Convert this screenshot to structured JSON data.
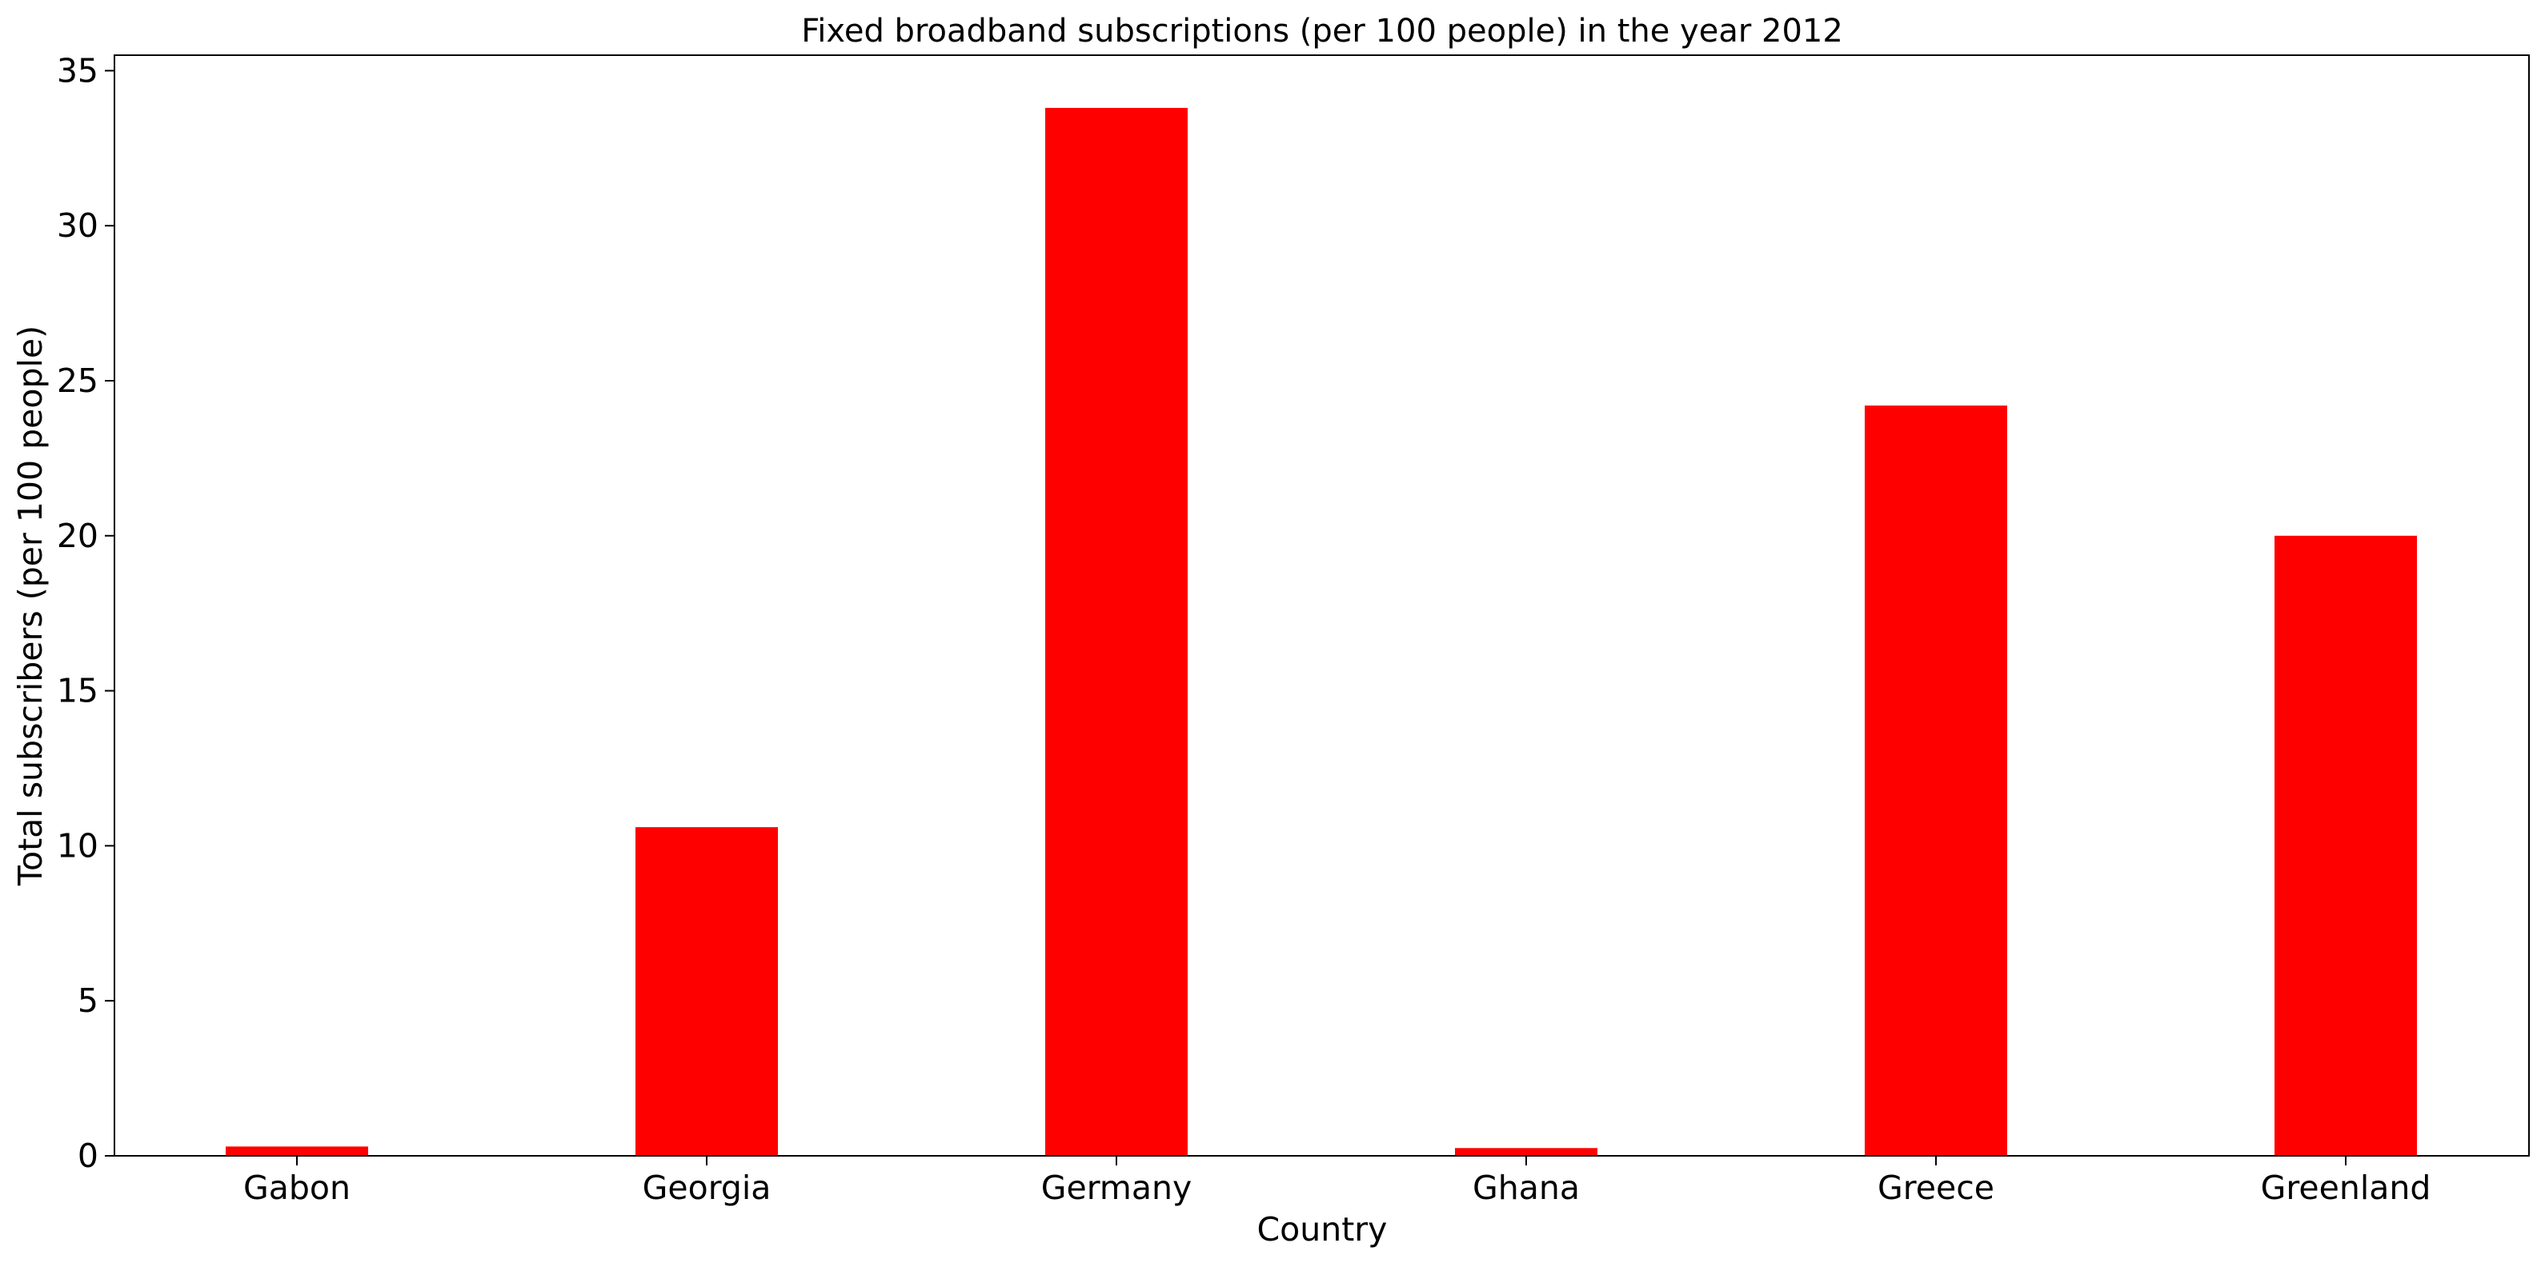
{
  "colors": {
    "bar": "#ff0000",
    "axis": "#000000",
    "background": "#ffffff"
  },
  "chart_data": {
    "type": "bar",
    "title": "Fixed broadband subscriptions (per 100 people) in the year 2012",
    "xlabel": "Country",
    "ylabel": "Total subscribers (per 100 people)",
    "categories": [
      "Gabon",
      "Georgia",
      "Germany",
      "Ghana",
      "Greece",
      "Greenland"
    ],
    "values": [
      0.3,
      10.6,
      33.8,
      0.25,
      24.2,
      20.0
    ],
    "ylim": [
      0,
      35.5
    ],
    "yticks": [
      0,
      5,
      10,
      15,
      20,
      25,
      30,
      35
    ],
    "ytick_labels": [
      "0",
      "5",
      "10",
      "15",
      "20",
      "25",
      "30",
      "35"
    ],
    "grid": false,
    "legend": "none"
  }
}
